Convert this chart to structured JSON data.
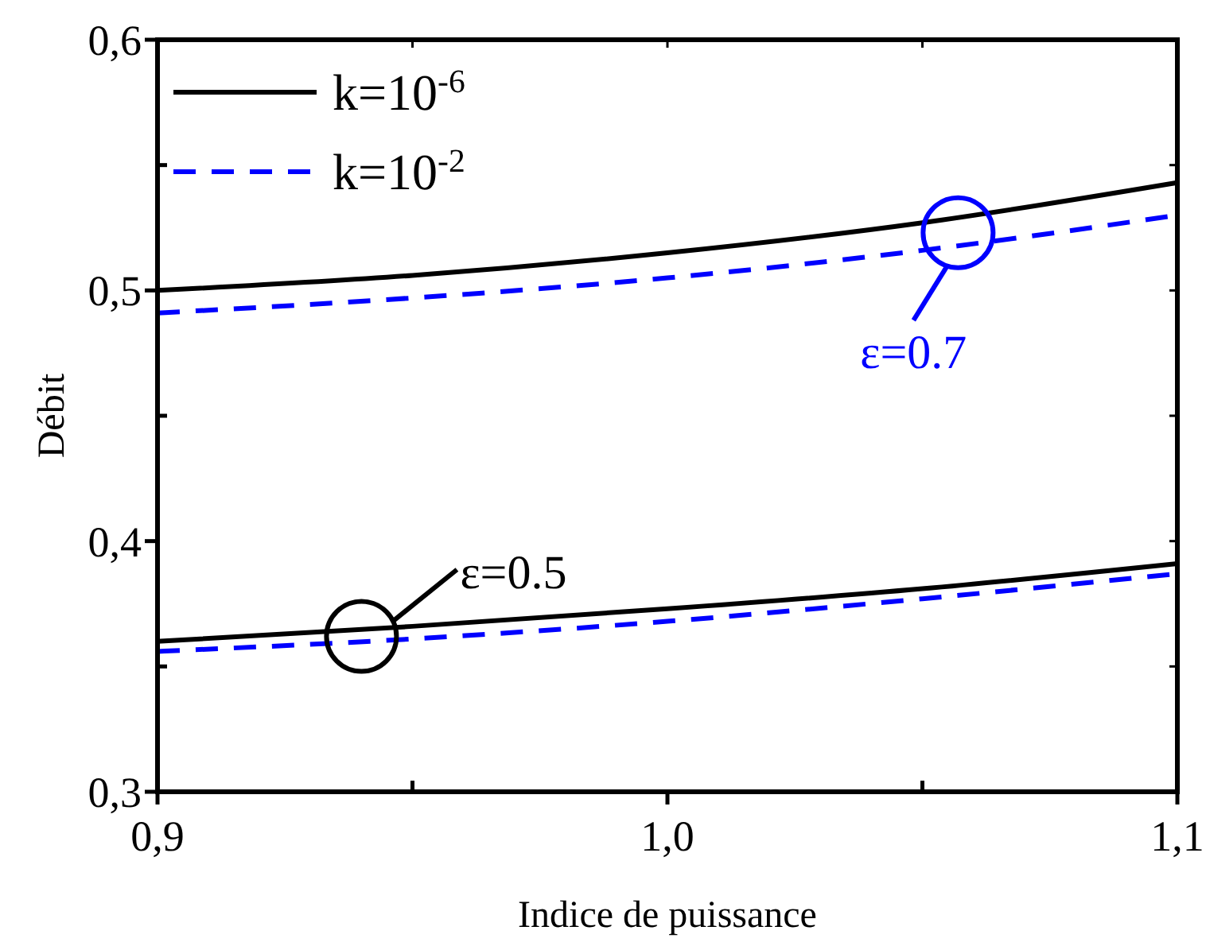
{
  "chart_data": {
    "type": "line",
    "xlabel": "Indice de puissance",
    "ylabel": "Débit",
    "x": [
      0.9,
      0.95,
      1.0,
      1.05,
      1.1
    ],
    "series": [
      {
        "name": "k=10$^{-6}$",
        "color": "#000000",
        "line_style": "solid",
        "values": [
          0.5,
          0.506,
          0.515,
          0.527,
          0.543
        ]
      },
      {
        "name": "k=10$^{-2}$",
        "color": "#0000ff",
        "line_style": "dashed",
        "values": [
          0.491,
          0.497,
          0.505,
          0.516,
          0.53
        ]
      },
      {
        "color": "#000000",
        "line_style": "solid",
        "values": [
          0.36,
          0.366,
          0.373,
          0.381,
          0.391
        ]
      },
      {
        "color": "#0000ff",
        "line_style": "dashed",
        "values": [
          0.356,
          0.361,
          0.368,
          0.377,
          0.387
        ]
      }
    ],
    "xlim": [
      0.9,
      1.1
    ],
    "xticks": [
      {
        "value": 0.9,
        "label": "0,9"
      },
      {
        "value": 0.95,
        "label": null
      },
      {
        "value": 1.0,
        "label": "1,0"
      },
      {
        "value": 1.05,
        "label": null
      },
      {
        "value": 1.1,
        "label": "1,1"
      }
    ],
    "ylim": [
      0.3,
      0.6
    ],
    "yticks": [
      {
        "value": 0.3,
        "label": "0,3"
      },
      {
        "value": 0.35,
        "label": null
      },
      {
        "value": 0.4,
        "label": "0,4"
      },
      {
        "value": 0.45,
        "label": null
      },
      {
        "value": 0.5,
        "label": "0,5"
      },
      {
        "value": 0.55,
        "label": null
      },
      {
        "value": 0.6,
        "label": "0,6"
      }
    ],
    "grid": false,
    "legend": "top left",
    "marker": "none",
    "annotations": [
      {
        "text": "ε=0.5",
        "x": 0.94,
        "y": 0.362
      },
      {
        "text": "ε=0.7",
        "x": 1.057,
        "y": 0.523
      }
    ]
  }
}
